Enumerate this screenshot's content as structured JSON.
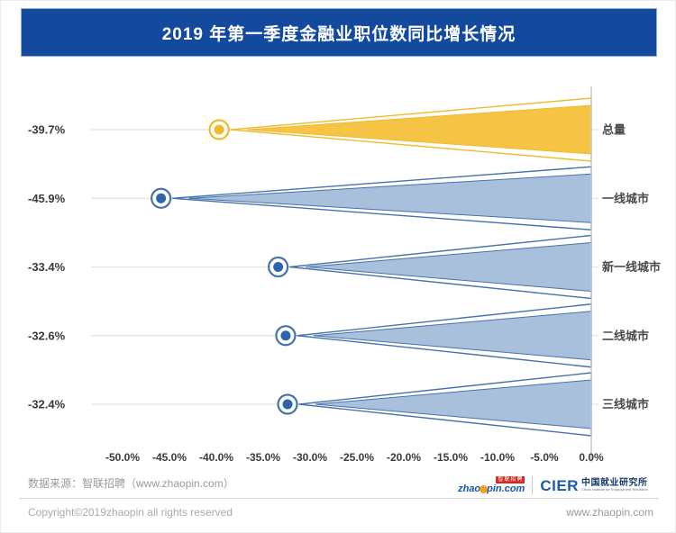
{
  "header": {
    "title": "2019 年第一季度金融业职位数同比增长情况"
  },
  "chart_data": {
    "type": "bar",
    "subtype": "horizontal wedge/funnel bars with circular point markers, bars taper from the 0% axis leftward to the data value",
    "title": "2019 年第一季度金融业职位数同比增长情况",
    "categories": [
      "总量",
      "一线城市",
      "新一线城市",
      "二线城市",
      "三线城市"
    ],
    "values": [
      -39.7,
      -45.9,
      -33.4,
      -32.6,
      -32.4
    ],
    "value_labels": [
      "-39.7%",
      "-45.9%",
      "-33.4%",
      "-32.6%",
      "-32.4%"
    ],
    "row_color_roles": [
      "yellow",
      "blue",
      "blue",
      "blue",
      "blue"
    ],
    "x_ticks": [
      "-50.0%",
      "-45.0%",
      "-40.0%",
      "-35.0%",
      "-30.0%",
      "-25.0%",
      "-20.0%",
      "-15.0%",
      "-10.0%",
      "-5.0%",
      "0.0%"
    ],
    "x_tick_values": [
      -50,
      -45,
      -40,
      -35,
      -30,
      -25,
      -20,
      -15,
      -10,
      -5,
      0
    ],
    "xlim": [
      -50,
      0
    ],
    "xlabel": "",
    "ylabel": "",
    "grid": "horizontal leader lines per row, vertical baseline at 0%",
    "legend": "none",
    "palette": {
      "yellow": {
        "fill": "#F6C445",
        "stroke": "#EFBC2F",
        "dot": "#F0BA25"
      },
      "blue": {
        "fill": "#A9C0DC",
        "stroke": "#4673AD",
        "dot": "#2D65AD"
      },
      "gridline": "#E3E3E3",
      "axis": "#C9C9C9",
      "label_text": "#3A3A3A",
      "category_text": "#4A4A4A"
    }
  },
  "footer": {
    "source": "数据来源：智联招聘（www.zhaopin.com）",
    "copyright": "Copyright©2019zhaopin all rights reserved",
    "site_url": "www.zhaopin.com",
    "zhaopin_logo": {
      "tag": "智联招聘",
      "word_left": "zhao",
      "word_right": "pin.com"
    },
    "cier_logo": {
      "acronym": "CIER",
      "name_cn": "中国就业研究所",
      "name_en": "China Institute for Employment Research"
    }
  }
}
